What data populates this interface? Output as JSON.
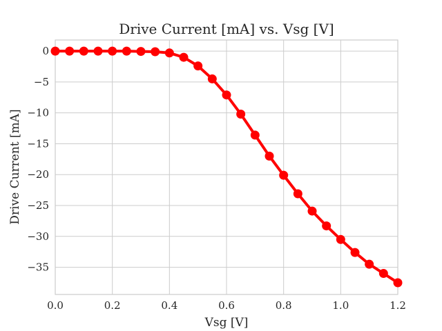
{
  "chart_data": {
    "type": "line",
    "title": "Drive Current [mA] vs. Vsg [V]",
    "xlabel": "Vsg [V]",
    "ylabel": "Drive Current [mA]",
    "xlim": [
      0,
      1.2
    ],
    "ylim": [
      -39.4,
      1.8
    ],
    "xticks": [
      0.0,
      0.2,
      0.4,
      0.6,
      0.8,
      1.0,
      1.2
    ],
    "xtick_labels": [
      "0.0",
      "0.2",
      "0.4",
      "0.6",
      "0.8",
      "1.0",
      "1.2"
    ],
    "yticks": [
      0,
      -5,
      -10,
      -15,
      -20,
      -25,
      -30,
      -35
    ],
    "ytick_labels": [
      "0",
      "−5",
      "−10",
      "−15",
      "−20",
      "−25",
      "−30",
      "−35"
    ],
    "grid": true,
    "color": "#ff0000",
    "x": [
      0.0,
      0.05,
      0.1,
      0.15,
      0.2,
      0.25,
      0.3,
      0.35,
      0.4,
      0.45,
      0.5,
      0.55,
      0.6,
      0.65,
      0.7,
      0.75,
      0.8,
      0.85,
      0.9,
      0.95,
      1.0,
      1.05,
      1.1,
      1.15,
      1.2
    ],
    "y": [
      0.0,
      0.0,
      0.0,
      0.0,
      0.0,
      0.0,
      -0.05,
      -0.1,
      -0.3,
      -1.0,
      -2.4,
      -4.5,
      -7.1,
      -10.2,
      -13.6,
      -17.0,
      -20.1,
      -23.1,
      -25.9,
      -28.3,
      -30.5,
      -32.6,
      -34.5,
      -36.0,
      -37.5
    ]
  }
}
